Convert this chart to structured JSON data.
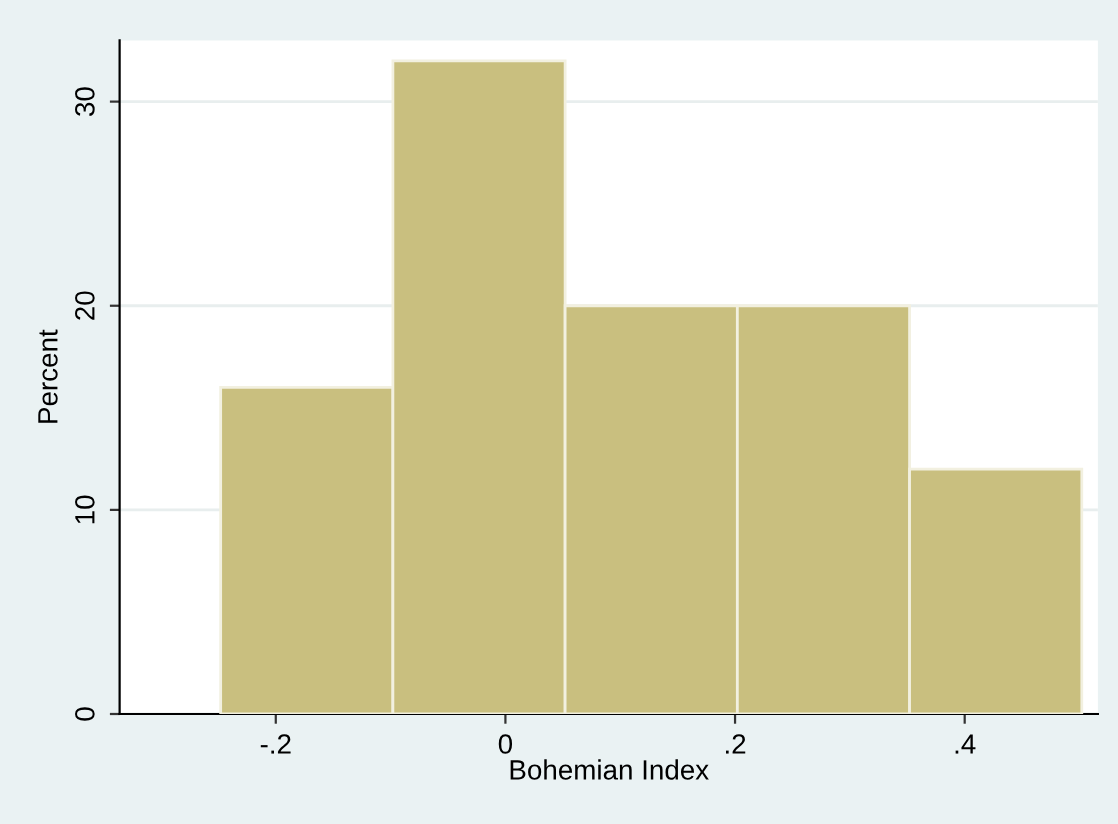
{
  "chart_data": {
    "type": "histogram",
    "xlabel": "Bohemian Index",
    "ylabel": "Percent",
    "bins": [
      -0.248,
      -0.098,
      0.052,
      0.202,
      0.352,
      0.502
    ],
    "values": [
      16,
      32,
      20,
      20,
      12
    ],
    "color": "#c9bf7f",
    "xlim": [
      -0.336,
      0.516
    ],
    "ylim": [
      0,
      33
    ],
    "xticks": [
      {
        "value": -0.2,
        "label": "-.2"
      },
      {
        "value": 0,
        "label": "0"
      },
      {
        "value": 0.2,
        "label": ".2"
      },
      {
        "value": 0.4,
        "label": ".4"
      }
    ],
    "yticks": [
      0,
      10,
      20,
      30
    ],
    "grid": "y"
  }
}
